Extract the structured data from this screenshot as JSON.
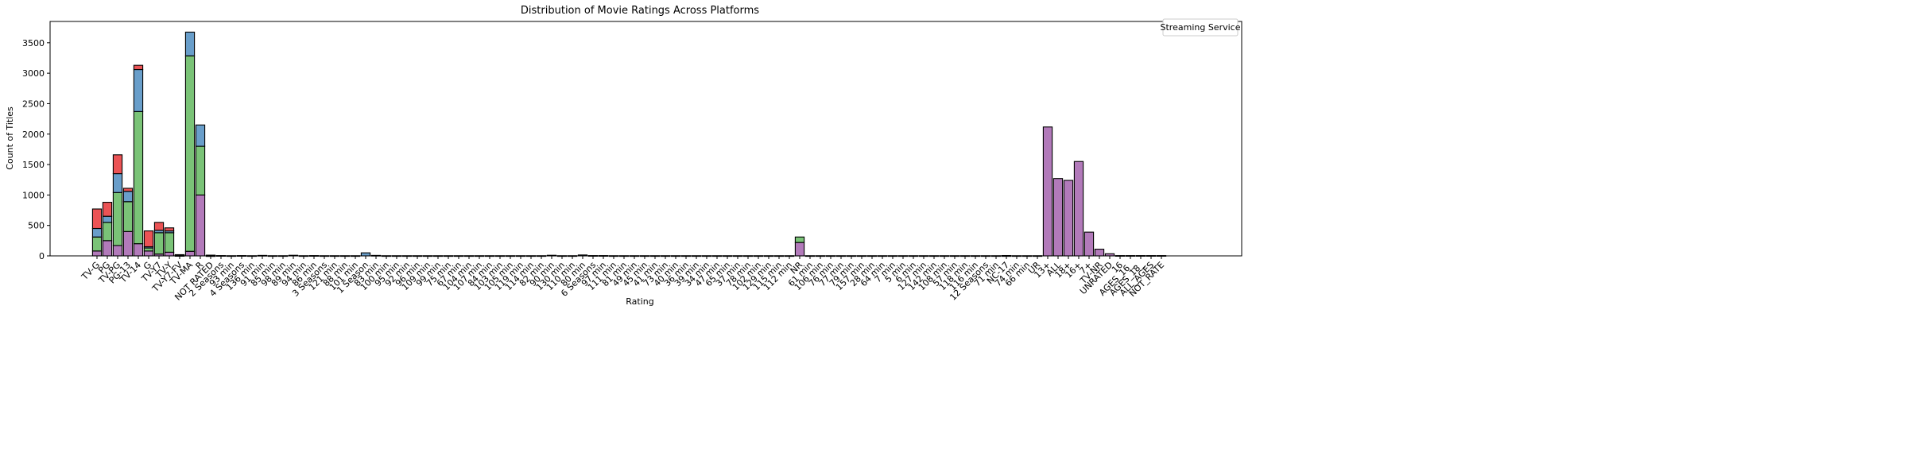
{
  "chart_data": {
    "type": "bar",
    "stacked": true,
    "title": "Distribution of Movie Ratings Across Platforms",
    "xlabel": "Rating",
    "ylabel": "Count of Titles",
    "ylim": [
      0,
      3850
    ],
    "yticks": [
      0,
      500,
      1000,
      1500,
      2000,
      2500,
      3000,
      3500
    ],
    "grid": false,
    "legend": {
      "title": "Streaming Service",
      "placement": "top-right"
    },
    "categories": [
      "TV-G",
      "PG",
      "TV-PG",
      "PG-13",
      "TV-14",
      "G",
      "TV-Y7",
      "TV-Y",
      "TV-Y7-FV",
      "TV-MA",
      "R",
      "NOT RATED",
      "2 Seasons",
      "93 min",
      "4 Seasons",
      "136 min",
      "91 min",
      "85 min",
      "98 min",
      "89 min",
      "94 min",
      "86 min",
      "3 Seasons",
      "121 min",
      "88 min",
      "101 min",
      "1 Season",
      "83 min",
      "100 min",
      "95 min",
      "92 min",
      "96 min",
      "109 min",
      "99 min",
      "75 min",
      "67 min",
      "104 min",
      "107 min",
      "84 min",
      "103 min",
      "105 min",
      "119 min",
      "114 min",
      "82 min",
      "90 min",
      "130 min",
      "110 min",
      "80 min",
      "6 Seasons",
      "97 min",
      "111 min",
      "81 min",
      "49 min",
      "45 min",
      "41 min",
      "73 min",
      "40 min",
      "36 min",
      "39 min",
      "34 min",
      "47 min",
      "65 min",
      "37 min",
      "78 min",
      "102 min",
      "129 min",
      "115 min",
      "112 min",
      "NR",
      "61 min",
      "106 min",
      "76 min",
      "77 min",
      "79 min",
      "157 min",
      "28 min",
      "64 min",
      "7 min",
      "5 min",
      "6 min",
      "127 min",
      "142 min",
      "108 min",
      "57 min",
      "118 min",
      "116 min",
      "12 Seasons",
      "71 min",
      "NC-17",
      "74 min",
      "66 min",
      "UR",
      "13+",
      "ALL",
      "18+",
      "16+",
      "7+",
      "TV-NR",
      "UNRATED",
      "16",
      "AGES_16_",
      "AGES_18_",
      "ALL_AGES",
      "NOT_RATE"
    ],
    "series": [
      {
        "color": "#984ea3",
        "values": [
          80,
          250,
          170,
          400,
          200,
          80,
          30,
          60,
          5,
          75,
          1000,
          2,
          0,
          0,
          0,
          0,
          0,
          0,
          0,
          0,
          0,
          0,
          0,
          0,
          0,
          0,
          0,
          0,
          0,
          0,
          0,
          0,
          0,
          0,
          0,
          0,
          0,
          0,
          0,
          0,
          0,
          0,
          0,
          0,
          0,
          0,
          0,
          0,
          0,
          0,
          0,
          0,
          0,
          0,
          0,
          0,
          0,
          0,
          0,
          0,
          0,
          0,
          0,
          0,
          0,
          0,
          0,
          0,
          220,
          0,
          0,
          0,
          0,
          0,
          0,
          0,
          0,
          0,
          0,
          0,
          0,
          0,
          0,
          0,
          0,
          0,
          0,
          0,
          3,
          0,
          0,
          0,
          2117,
          1270,
          1240,
          1550,
          390,
          110,
          35,
          5,
          5,
          5,
          5,
          5
        ]
      },
      {
        "color": "#4daf4a",
        "values": [
          230,
          300,
          870,
          490,
          2170,
          50,
          350,
          320,
          5,
          3210,
          800,
          0,
          0,
          0,
          0,
          0,
          0,
          0,
          0,
          0,
          0,
          0,
          0,
          0,
          0,
          0,
          0,
          0,
          0,
          0,
          0,
          0,
          0,
          0,
          0,
          0,
          0,
          0,
          0,
          0,
          0,
          0,
          0,
          0,
          0,
          0,
          0,
          0,
          0,
          0,
          0,
          0,
          0,
          0,
          0,
          0,
          0,
          0,
          0,
          0,
          0,
          0,
          0,
          0,
          0,
          0,
          0,
          0,
          90,
          0,
          0,
          0,
          0,
          0,
          0,
          0,
          0,
          0,
          0,
          0,
          0,
          0,
          0,
          0,
          0,
          0,
          0,
          0,
          0,
          0,
          0,
          0,
          0,
          0,
          0,
          0,
          0,
          0,
          0,
          0,
          0,
          0,
          0,
          0
        ]
      },
      {
        "color": "#377eb8",
        "values": [
          140,
          100,
          310,
          170,
          690,
          20,
          40,
          30,
          5,
          390,
          350,
          10,
          5,
          3,
          5,
          3,
          8,
          3,
          3,
          10,
          3,
          5,
          3,
          3,
          3,
          3,
          50,
          8,
          3,
          3,
          3,
          3,
          3,
          3,
          3,
          3,
          3,
          3,
          3,
          3,
          3,
          3,
          3,
          3,
          10,
          3,
          3,
          15,
          5,
          5,
          3,
          3,
          3,
          3,
          3,
          3,
          3,
          3,
          3,
          3,
          3,
          3,
          3,
          3,
          3,
          3,
          3,
          3,
          0,
          3,
          3,
          3,
          3,
          3,
          3,
          3,
          3,
          3,
          3,
          3,
          3,
          3,
          3,
          3,
          3,
          3,
          3,
          3,
          0,
          3,
          3,
          3,
          0,
          0,
          0,
          0,
          0,
          0,
          0,
          0,
          0,
          0,
          0,
          0
        ]
      },
      {
        "color": "#e41a1c",
        "values": [
          320,
          230,
          310,
          50,
          70,
          260,
          130,
          50,
          5,
          0,
          0,
          0,
          0,
          0,
          0,
          0,
          0,
          0,
          0,
          0,
          0,
          0,
          0,
          0,
          0,
          0,
          0,
          0,
          0,
          0,
          0,
          0,
          0,
          0,
          0,
          0,
          0,
          0,
          0,
          0,
          0,
          0,
          0,
          0,
          0,
          0,
          0,
          0,
          0,
          0,
          0,
          0,
          0,
          0,
          0,
          0,
          0,
          0,
          0,
          0,
          0,
          0,
          0,
          0,
          0,
          0,
          0,
          0,
          0,
          0,
          0,
          0,
          0,
          0,
          0,
          0,
          0,
          0,
          0,
          0,
          0,
          0,
          0,
          0,
          0,
          0,
          0,
          0,
          3,
          0,
          0,
          0,
          0,
          0,
          0,
          0,
          0,
          0,
          0,
          0,
          0,
          0,
          0,
          0
        ]
      }
    ]
  }
}
